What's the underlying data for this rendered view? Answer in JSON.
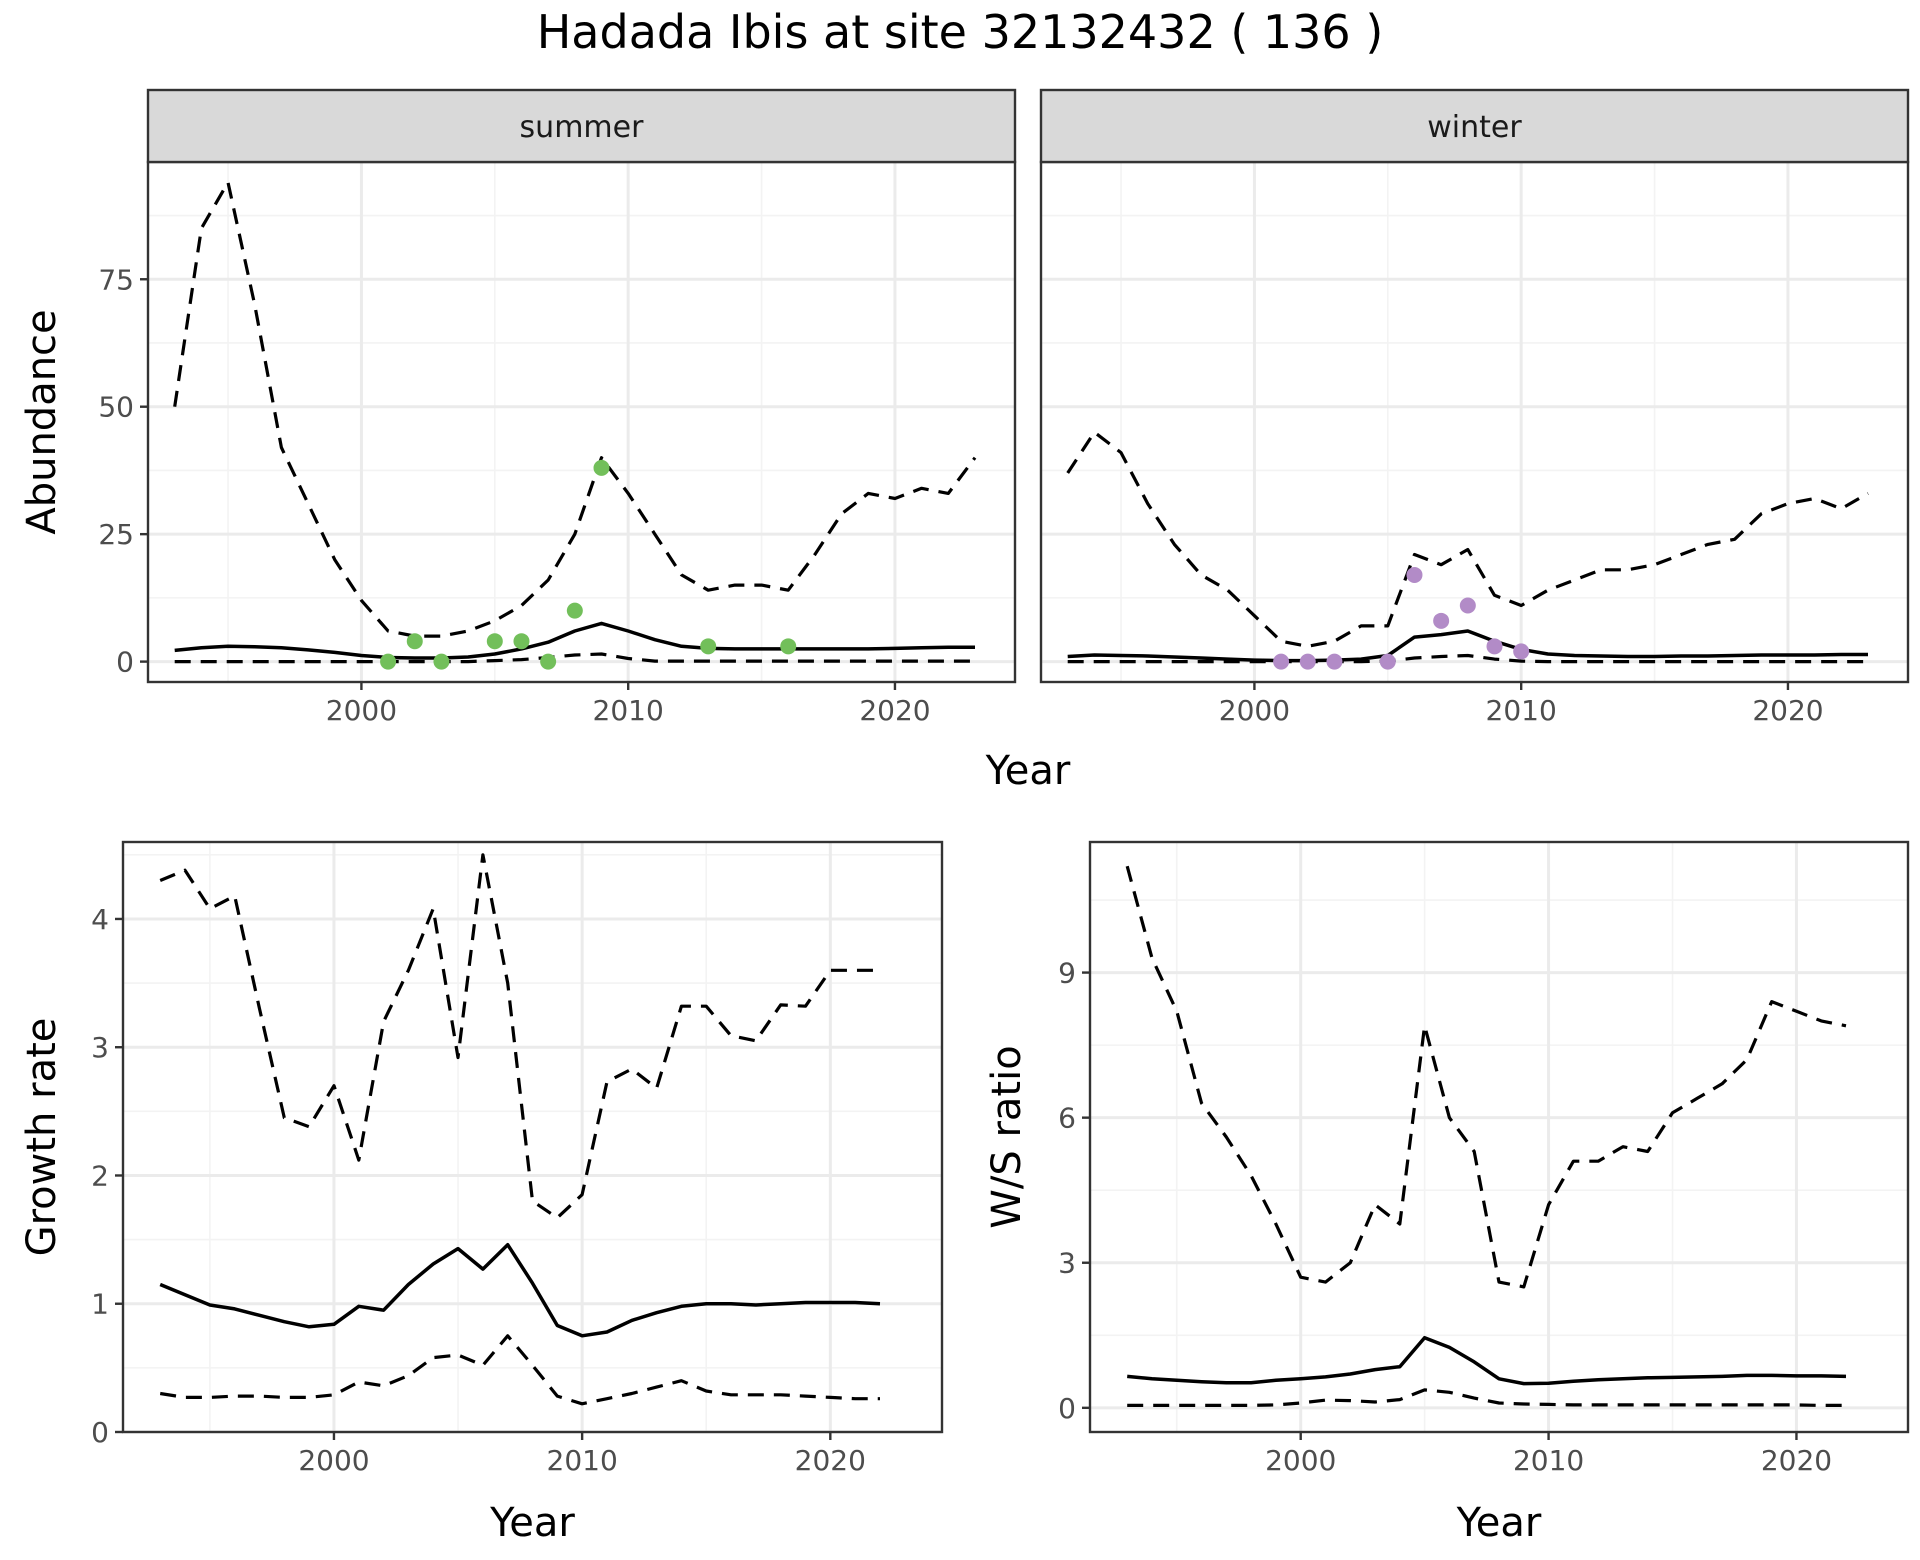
{
  "title": "Hadada Ibis at site 32132432 ( 136 )",
  "colors": {
    "summer": "#72bf5a",
    "winter": "#b28bc7",
    "line": "#000000"
  },
  "chart_data": [
    {
      "id": "abundance",
      "type": "line",
      "facets": [
        "summer",
        "winter"
      ],
      "xlabel": "Year",
      "ylabel": "Abundance",
      "xlim": [
        1992,
        2024.5
      ],
      "ylim": [
        -4,
        98
      ],
      "xticks": [
        2000,
        2010,
        2020
      ],
      "yticks": [
        0,
        25,
        50,
        75
      ],
      "grid": true,
      "panels": [
        {
          "strip": "summer",
          "x": [
            1993,
            1994,
            1995,
            1996,
            1997,
            1998,
            1999,
            2000,
            2001,
            2002,
            2003,
            2004,
            2005,
            2006,
            2007,
            2008,
            2009,
            2010,
            2011,
            2012,
            2013,
            2014,
            2015,
            2016,
            2017,
            2018,
            2019,
            2020,
            2021,
            2022,
            2023
          ],
          "mean": [
            2.2,
            2.7,
            3.0,
            2.9,
            2.7,
            2.3,
            1.8,
            1.2,
            0.8,
            0.7,
            0.7,
            0.9,
            1.5,
            2.5,
            3.8,
            6.0,
            7.5,
            6.0,
            4.3,
            3.0,
            2.6,
            2.5,
            2.5,
            2.5,
            2.5,
            2.5,
            2.5,
            2.6,
            2.7,
            2.8,
            2.8
          ],
          "upper": [
            50,
            85,
            94,
            70,
            42,
            31,
            20,
            12,
            6,
            5,
            5,
            6,
            8,
            11,
            16,
            25,
            40,
            33,
            25,
            17,
            14,
            15,
            15,
            14,
            21,
            29,
            33,
            32,
            34,
            33,
            40
          ],
          "lower": [
            0,
            0,
            0,
            0,
            0,
            0,
            0,
            0,
            0,
            0,
            0,
            0,
            0.2,
            0.4,
            0.8,
            1.3,
            1.5,
            0.6,
            0.1,
            0.1,
            0.1,
            0.1,
            0.1,
            0.1,
            0.1,
            0.1,
            0.1,
            0.1,
            0.1,
            0.1,
            0.1
          ],
          "points": {
            "x": [
              2001,
              2002,
              2003,
              2005,
              2006,
              2007,
              2008,
              2009,
              2013,
              2016
            ],
            "y": [
              0,
              4,
              0,
              4,
              4,
              0,
              10,
              38,
              3,
              3
            ]
          }
        },
        {
          "strip": "winter",
          "x": [
            1993,
            1994,
            1995,
            1996,
            1997,
            1998,
            1999,
            2000,
            2001,
            2002,
            2003,
            2004,
            2005,
            2006,
            2007,
            2008,
            2009,
            2010,
            2011,
            2012,
            2013,
            2014,
            2015,
            2016,
            2017,
            2018,
            2019,
            2020,
            2021,
            2022,
            2023
          ],
          "mean": [
            1.0,
            1.3,
            1.2,
            1.1,
            0.9,
            0.7,
            0.5,
            0.3,
            0.2,
            0.2,
            0.3,
            0.5,
            1.2,
            4.8,
            5.3,
            6.0,
            4.0,
            2.4,
            1.5,
            1.2,
            1.1,
            1.0,
            1.0,
            1.1,
            1.1,
            1.2,
            1.3,
            1.3,
            1.3,
            1.4,
            1.4
          ],
          "upper": [
            37,
            45,
            41,
            31,
            23,
            17,
            14,
            9,
            4,
            3,
            4,
            7,
            7,
            21,
            19,
            22,
            13,
            11,
            14,
            16,
            18,
            18,
            19,
            21,
            23,
            24,
            29,
            31,
            32,
            30,
            33
          ],
          "lower": [
            0,
            0,
            0,
            0,
            0,
            0,
            0,
            0,
            0,
            0,
            0,
            0,
            0.1,
            0.7,
            1.0,
            1.2,
            0.5,
            0.1,
            0,
            0,
            0,
            0,
            0,
            0,
            0,
            0,
            0,
            0,
            0,
            0,
            0
          ],
          "points": {
            "x": [
              2001,
              2002,
              2003,
              2005,
              2006,
              2007,
              2008,
              2009,
              2010
            ],
            "y": [
              0,
              0,
              0,
              0,
              17,
              8,
              11,
              3,
              2
            ]
          }
        }
      ]
    },
    {
      "id": "growth",
      "type": "line",
      "xlabel": "Year",
      "ylabel": "Growth rate",
      "xlim": [
        1991.5,
        2024.5
      ],
      "ylim": [
        0,
        4.6
      ],
      "xticks": [
        2000,
        2010,
        2020
      ],
      "yticks": [
        0,
        1,
        2,
        3,
        4
      ],
      "grid": true,
      "x": [
        1993,
        1994,
        1995,
        1996,
        1997,
        1998,
        1999,
        2000,
        2001,
        2002,
        2003,
        2004,
        2005,
        2006,
        2007,
        2008,
        2009,
        2010,
        2011,
        2012,
        2013,
        2014,
        2015,
        2016,
        2017,
        2018,
        2019,
        2020,
        2021,
        2022
      ],
      "mean": [
        1.15,
        1.07,
        0.99,
        0.96,
        0.91,
        0.86,
        0.82,
        0.84,
        0.98,
        0.95,
        1.15,
        1.31,
        1.43,
        1.27,
        1.46,
        1.16,
        0.83,
        0.75,
        0.78,
        0.87,
        0.93,
        0.98,
        1.0,
        1.0,
        0.99,
        1.0,
        1.01,
        1.01,
        1.01,
        1.0
      ],
      "upper": [
        4.3,
        4.38,
        4.08,
        4.18,
        3.3,
        2.45,
        2.38,
        2.7,
        2.12,
        3.2,
        3.6,
        4.08,
        2.92,
        4.5,
        3.5,
        1.8,
        1.67,
        1.85,
        2.73,
        2.83,
        2.68,
        3.32,
        3.32,
        3.09,
        3.05,
        3.33,
        3.32,
        3.6,
        3.6,
        3.6
      ],
      "lower": [
        0.3,
        0.27,
        0.27,
        0.28,
        0.28,
        0.27,
        0.27,
        0.29,
        0.39,
        0.36,
        0.44,
        0.58,
        0.6,
        0.52,
        0.75,
        0.52,
        0.28,
        0.22,
        0.26,
        0.3,
        0.35,
        0.4,
        0.32,
        0.29,
        0.29,
        0.29,
        0.28,
        0.27,
        0.26,
        0.26
      ]
    },
    {
      "id": "ws_ratio",
      "type": "line",
      "xlabel": "Year",
      "ylabel": "W/S ratio",
      "xlim": [
        1991.5,
        2024.5
      ],
      "ylim": [
        -0.5,
        11.7
      ],
      "xticks": [
        2000,
        2010,
        2020
      ],
      "yticks": [
        0,
        3,
        6,
        9
      ],
      "grid": true,
      "x": [
        1993,
        1994,
        1995,
        1996,
        1997,
        1998,
        1999,
        2000,
        2001,
        2002,
        2003,
        2004,
        2005,
        2006,
        2007,
        2008,
        2009,
        2010,
        2011,
        2012,
        2013,
        2014,
        2015,
        2016,
        2017,
        2018,
        2019,
        2020,
        2021,
        2022
      ],
      "mean": [
        0.65,
        0.6,
        0.57,
        0.54,
        0.52,
        0.52,
        0.57,
        0.6,
        0.64,
        0.7,
        0.79,
        0.85,
        1.45,
        1.25,
        0.95,
        0.6,
        0.5,
        0.51,
        0.55,
        0.58,
        0.6,
        0.62,
        0.63,
        0.64,
        0.65,
        0.67,
        0.67,
        0.66,
        0.66,
        0.65
      ],
      "upper": [
        11.2,
        9.3,
        8.2,
        6.3,
        5.6,
        4.8,
        3.8,
        2.7,
        2.6,
        3.0,
        4.2,
        3.8,
        7.9,
        6.0,
        5.3,
        2.6,
        2.5,
        4.2,
        5.1,
        5.1,
        5.4,
        5.3,
        6.1,
        6.4,
        6.7,
        7.2,
        8.4,
        8.2,
        8.0,
        7.9
      ],
      "lower": [
        0.05,
        0.05,
        0.05,
        0.05,
        0.05,
        0.05,
        0.06,
        0.1,
        0.16,
        0.15,
        0.12,
        0.17,
        0.37,
        0.32,
        0.2,
        0.1,
        0.08,
        0.07,
        0.06,
        0.06,
        0.06,
        0.06,
        0.06,
        0.06,
        0.06,
        0.06,
        0.06,
        0.06,
        0.05,
        0.05
      ]
    }
  ]
}
